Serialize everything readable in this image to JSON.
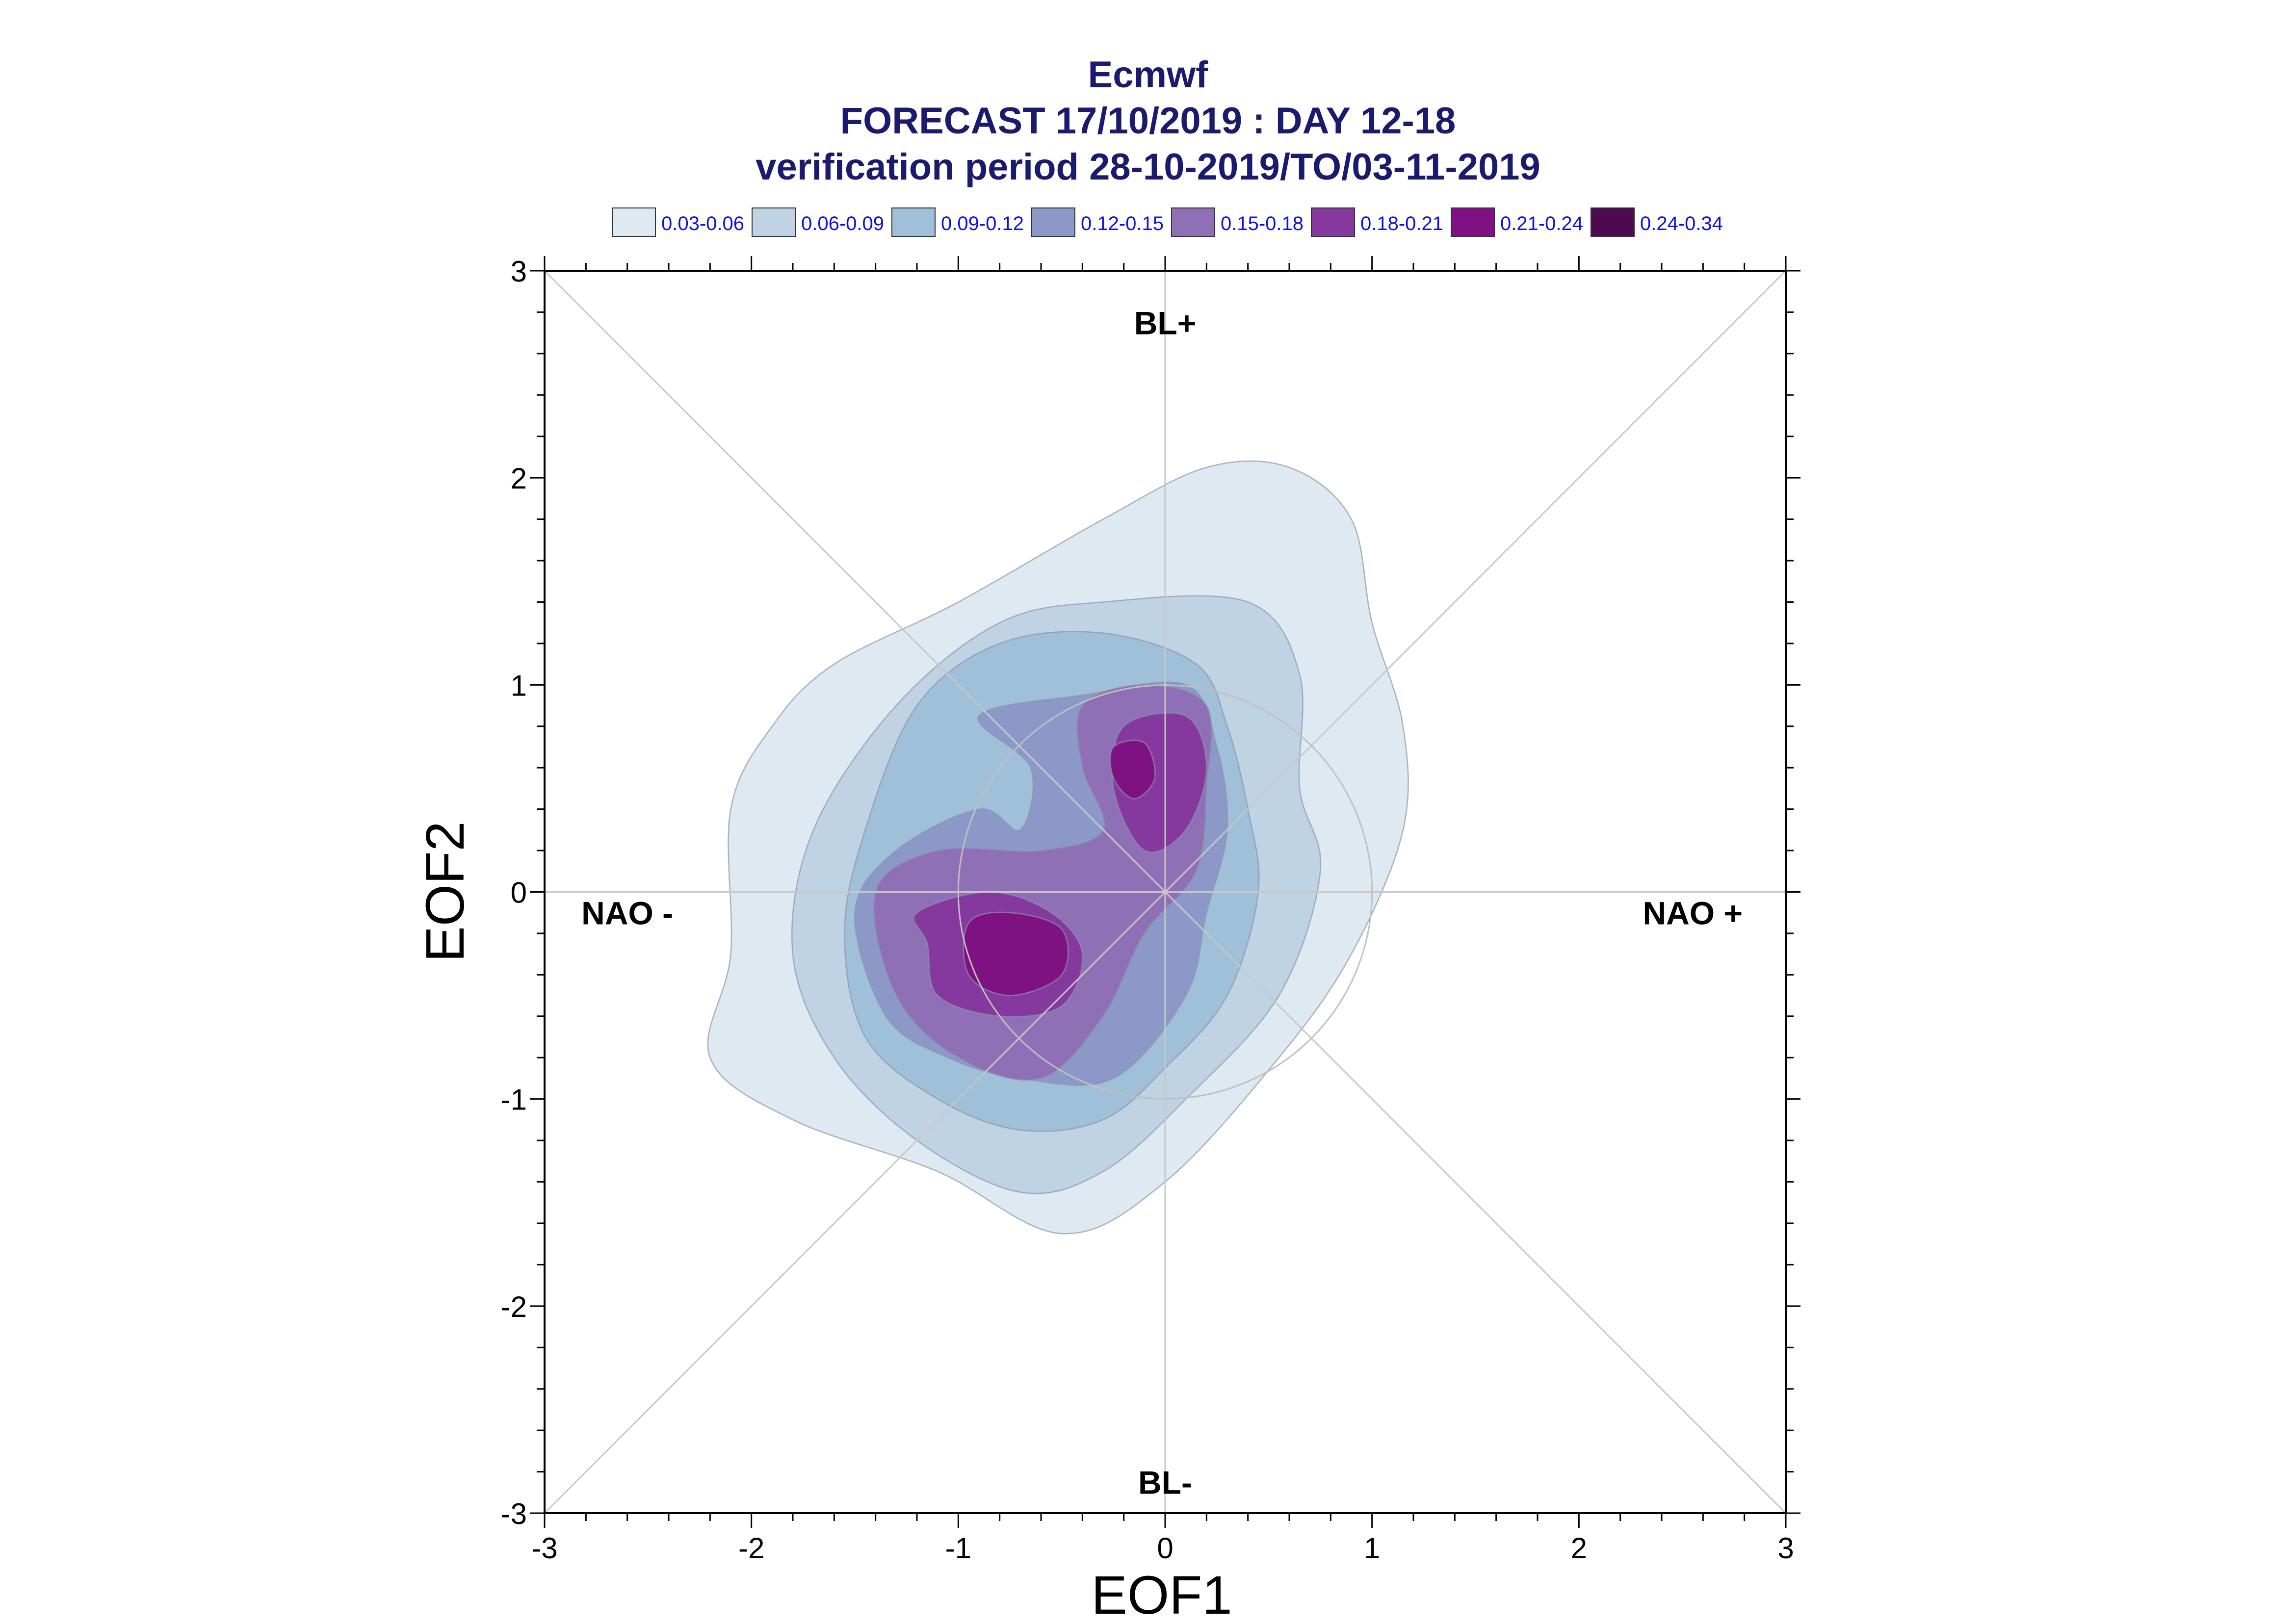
{
  "chart_data": {
    "type": "contour",
    "title": "Ecmwf",
    "subtitle_lines": [
      "FORECAST 17/10/2019 : DAY 12-18",
      "verification period 28-10-2019/TO/03-11-2019"
    ],
    "xlabel": "EOF1",
    "ylabel": "EOF2",
    "xlim": [
      -3,
      3
    ],
    "ylim": [
      -3,
      3
    ],
    "xticks": [
      "-3",
      "-2",
      "-1",
      "0",
      "1",
      "2",
      "3"
    ],
    "yticks": [
      "-3",
      "-2",
      "-1",
      "0",
      "1",
      "2",
      "3"
    ],
    "grid": false,
    "legend_position": "top",
    "legend": [
      {
        "label": "0.03-0.06",
        "color": "#dfe9f2"
      },
      {
        "label": "0.06-0.09",
        "color": "#c0d3e4"
      },
      {
        "label": "0.09-0.12",
        "color": "#a0bfd9"
      },
      {
        "label": "0.12-0.15",
        "color": "#8c98c8"
      },
      {
        "label": "0.15-0.18",
        "color": "#8f6fb5"
      },
      {
        "label": "0.18-0.21",
        "color": "#85399e"
      },
      {
        "label": "0.21-0.24",
        "color": "#7f1282"
      },
      {
        "label": "0.24-0.34",
        "color": "#4d0a4f"
      }
    ],
    "region_labels": [
      {
        "text": "BL+",
        "x": 0.0,
        "y": 2.75
      },
      {
        "text": "BL-",
        "x": 0.0,
        "y": -2.85
      },
      {
        "text": "NAO -",
        "x": -2.6,
        "y": -0.1
      },
      {
        "text": "NAO +",
        "x": 2.55,
        "y": -0.1
      }
    ],
    "reference_circle_radius": 1.0,
    "contour_levels": [
      {
        "level": "0.03-0.06",
        "polygons": [
          [
            [
              -1.6,
              1.1
            ],
            [
              -1.0,
              1.4
            ],
            [
              -0.3,
              1.8
            ],
            [
              0.2,
              2.05
            ],
            [
              0.6,
              2.05
            ],
            [
              0.9,
              1.8
            ],
            [
              1.0,
              1.3
            ],
            [
              1.15,
              0.8
            ],
            [
              1.15,
              0.3
            ],
            [
              0.9,
              -0.3
            ],
            [
              0.55,
              -0.8
            ],
            [
              0.0,
              -1.4
            ],
            [
              -0.5,
              -1.65
            ],
            [
              -1.1,
              -1.35
            ],
            [
              -1.8,
              -1.1
            ],
            [
              -2.2,
              -0.8
            ],
            [
              -2.1,
              -0.3
            ],
            [
              -2.1,
              0.4
            ],
            [
              -1.9,
              0.8
            ]
          ]
        ]
      },
      {
        "level": "0.06-0.09",
        "polygons": [
          [
            [
              -1.3,
              0.9
            ],
            [
              -0.8,
              1.3
            ],
            [
              -0.3,
              1.4
            ],
            [
              0.4,
              1.4
            ],
            [
              0.65,
              1.05
            ],
            [
              0.65,
              0.5
            ],
            [
              0.75,
              0.1
            ],
            [
              0.55,
              -0.5
            ],
            [
              0.1,
              -1.0
            ],
            [
              -0.3,
              -1.35
            ],
            [
              -0.7,
              -1.45
            ],
            [
              -1.2,
              -1.2
            ],
            [
              -1.6,
              -0.8
            ],
            [
              -1.8,
              -0.3
            ],
            [
              -1.7,
              0.3
            ]
          ]
        ]
      },
      {
        "level": "0.09-0.12",
        "polygons": [
          [
            [
              -1.2,
              0.9
            ],
            [
              -0.8,
              1.2
            ],
            [
              -0.3,
              1.25
            ],
            [
              0.15,
              1.1
            ],
            [
              0.3,
              0.8
            ],
            [
              0.4,
              0.4
            ],
            [
              0.45,
              0.0
            ],
            [
              0.3,
              -0.5
            ],
            [
              0.0,
              -0.85
            ],
            [
              -0.3,
              -1.1
            ],
            [
              -0.7,
              -1.15
            ],
            [
              -1.1,
              -1.0
            ],
            [
              -1.45,
              -0.7
            ],
            [
              -1.55,
              -0.2
            ],
            [
              -1.45,
              0.3
            ]
          ]
        ]
      },
      {
        "level": "0.12-0.15",
        "polygons": [
          [
            [
              -0.9,
              0.85
            ],
            [
              -0.4,
              0.95
            ],
            [
              0.1,
              1.0
            ],
            [
              0.25,
              0.7
            ],
            [
              0.3,
              0.3
            ],
            [
              0.2,
              -0.1
            ],
            [
              0.1,
              -0.5
            ],
            [
              -0.25,
              -0.9
            ],
            [
              -0.7,
              -0.9
            ],
            [
              -1.05,
              -0.8
            ],
            [
              -1.35,
              -0.6
            ],
            [
              -1.5,
              -0.1
            ],
            [
              -1.3,
              0.2
            ],
            [
              -0.9,
              0.4
            ],
            [
              -0.7,
              0.3
            ],
            [
              -0.65,
              0.6
            ]
          ]
        ]
      },
      {
        "level": "0.15-0.18",
        "polygons": [
          [
            [
              -0.4,
              0.9
            ],
            [
              -0.1,
              1.0
            ],
            [
              0.2,
              0.9
            ],
            [
              0.2,
              0.5
            ],
            [
              0.15,
              0.1
            ],
            [
              -0.1,
              -0.2
            ],
            [
              -0.3,
              -0.6
            ],
            [
              -0.6,
              -0.9
            ],
            [
              -1.0,
              -0.8
            ],
            [
              -1.3,
              -0.5
            ],
            [
              -1.4,
              0.0
            ],
            [
              -1.1,
              0.2
            ],
            [
              -0.6,
              0.2
            ],
            [
              -0.3,
              0.3
            ],
            [
              -0.4,
              0.6
            ]
          ]
        ]
      },
      {
        "level": "0.18-0.21",
        "polygons": [
          [
            [
              -0.2,
              0.8
            ],
            [
              0.1,
              0.85
            ],
            [
              0.2,
              0.6
            ],
            [
              0.1,
              0.3
            ],
            [
              -0.1,
              0.2
            ],
            [
              -0.25,
              0.5
            ]
          ]
        ],
        "extra": [
          [
            [
              -1.2,
              -0.1
            ],
            [
              -0.85,
              0.0
            ],
            [
              -0.55,
              -0.1
            ],
            [
              -0.4,
              -0.3
            ],
            [
              -0.5,
              -0.55
            ],
            [
              -0.8,
              -0.6
            ],
            [
              -1.1,
              -0.5
            ],
            [
              -1.15,
              -0.25
            ]
          ]
        ]
      },
      {
        "level": "0.21-0.24",
        "polygons": [
          [
            [
              -0.25,
              0.7
            ],
            [
              -0.1,
              0.72
            ],
            [
              -0.05,
              0.55
            ],
            [
              -0.15,
              0.45
            ],
            [
              -0.25,
              0.55
            ]
          ]
        ],
        "extra": [
          [
            [
              -0.95,
              -0.15
            ],
            [
              -0.75,
              -0.1
            ],
            [
              -0.5,
              -0.18
            ],
            [
              -0.5,
              -0.4
            ],
            [
              -0.75,
              -0.5
            ],
            [
              -0.95,
              -0.4
            ]
          ]
        ]
      }
    ]
  }
}
